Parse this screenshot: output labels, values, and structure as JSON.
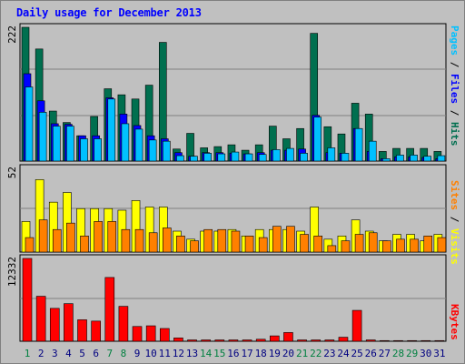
{
  "title": "Daily usage for December 2013",
  "colors": {
    "hits": "#006f4f",
    "files": "#0000ff",
    "pages": "#00c0ff",
    "visits": "#ffff00",
    "sites": "#ff8000",
    "kbytes": "#ff0000",
    "weekend": "#008040",
    "weekday": "#000080"
  },
  "chart_data": [
    {
      "type": "bar",
      "categories": [
        "1",
        "2",
        "3",
        "4",
        "5",
        "6",
        "7",
        "8",
        "9",
        "10",
        "11",
        "12",
        "13",
        "14",
        "15",
        "16",
        "17",
        "18",
        "19",
        "20",
        "21",
        "22",
        "23",
        "24",
        "25",
        "26",
        "27",
        "28",
        "29",
        "30",
        "31"
      ],
      "ymax_label": "222",
      "ylim": [
        0,
        222
      ],
      "series": [
        {
          "name": "Hits",
          "values": [
            222,
            186,
            83,
            64,
            42,
            74,
            120,
            110,
            103,
            126,
            197,
            20,
            46,
            22,
            24,
            27,
            18,
            27,
            58,
            37,
            54,
            212,
            57,
            45,
            96,
            78,
            16,
            21,
            21,
            21,
            16
          ]
        },
        {
          "name": "Files",
          "values": [
            145,
            100,
            62,
            61,
            42,
            42,
            105,
            78,
            59,
            42,
            37,
            14,
            8,
            14,
            14,
            13,
            12,
            14,
            18,
            18,
            20,
            76,
            14,
            13,
            54,
            16,
            4,
            7,
            7,
            6,
            4
          ]
        },
        {
          "name": "Pages",
          "values": [
            123,
            81,
            58,
            58,
            37,
            37,
            103,
            62,
            53,
            35,
            33,
            9,
            8,
            13,
            12,
            15,
            12,
            11,
            19,
            21,
            13,
            73,
            22,
            13,
            54,
            33,
            4,
            10,
            10,
            8,
            9
          ]
        }
      ]
    },
    {
      "type": "bar",
      "categories": [
        "1",
        "2",
        "3",
        "4",
        "5",
        "6",
        "7",
        "8",
        "9",
        "10",
        "11",
        "12",
        "13",
        "14",
        "15",
        "16",
        "17",
        "18",
        "19",
        "20",
        "21",
        "22",
        "23",
        "24",
        "25",
        "26",
        "27",
        "28",
        "29",
        "30",
        "31"
      ],
      "ymax_label": "52",
      "ylim": [
        0,
        52
      ],
      "series": [
        {
          "name": "Visits",
          "values": [
            19,
            45,
            31,
            37,
            27,
            27,
            27,
            26,
            32,
            28,
            28,
            13,
            8,
            13,
            13,
            14,
            10,
            14,
            14,
            14,
            13,
            28,
            8,
            10,
            20,
            13,
            7,
            11,
            11,
            7,
            11
          ]
        },
        {
          "name": "Sites",
          "values": [
            9,
            20,
            14,
            18,
            10,
            19,
            19,
            14,
            14,
            12,
            15,
            10,
            7,
            14,
            14,
            13,
            10,
            9,
            16,
            16,
            11,
            10,
            4,
            7,
            11,
            12,
            7,
            8,
            8,
            10,
            9
          ]
        }
      ]
    },
    {
      "type": "bar",
      "categories": [
        "1",
        "2",
        "3",
        "4",
        "5",
        "6",
        "7",
        "8",
        "9",
        "10",
        "11",
        "12",
        "13",
        "14",
        "15",
        "16",
        "17",
        "18",
        "19",
        "20",
        "21",
        "22",
        "23",
        "24",
        "25",
        "26",
        "27",
        "28",
        "29",
        "30",
        "31"
      ],
      "ymax_label": "12332",
      "ylim": [
        0,
        12332
      ],
      "series": [
        {
          "name": "KBytes",
          "values": [
            12332,
            6700,
            4900,
            5600,
            3200,
            3000,
            9500,
            5200,
            2200,
            2300,
            1900,
            500,
            200,
            200,
            200,
            200,
            200,
            300,
            800,
            1300,
            200,
            200,
            200,
            600,
            4600,
            200,
            100,
            100,
            100,
            100,
            100
          ]
        }
      ]
    }
  ],
  "legend_right_top": [
    {
      "text": "Pages",
      "color": "#00c0ff"
    },
    {
      "text": " / ",
      "color": "#000000"
    },
    {
      "text": "Files",
      "color": "#0000ff"
    },
    {
      "text": " / ",
      "color": "#000000"
    },
    {
      "text": "Hits",
      "color": "#006f4f"
    }
  ],
  "legend_right_mid": [
    {
      "text": "Sites",
      "color": "#ff8000"
    },
    {
      "text": " / ",
      "color": "#000000"
    },
    {
      "text": "Visits",
      "color": "#ffff00"
    }
  ],
  "legend_right_bottom": [
    {
      "text": "KBytes",
      "color": "#ff0000"
    }
  ],
  "weekend_days": [
    "1",
    "7",
    "8",
    "14",
    "15",
    "21",
    "22",
    "28",
    "29"
  ]
}
